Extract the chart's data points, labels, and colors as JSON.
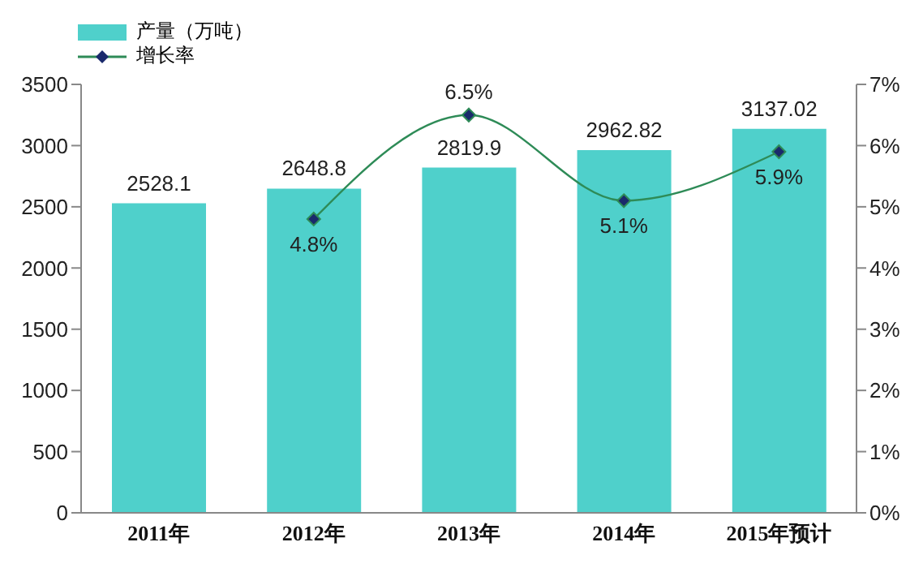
{
  "chart_data": {
    "type": "bar",
    "categories": [
      "2011年",
      "2012年",
      "2013年",
      "2014年",
      "2015年预计"
    ],
    "series": [
      {
        "name": "产量（万吨）",
        "color": "#4fd0cb",
        "values": [
          2528.1,
          2648.8,
          2819.9,
          2962.82,
          3137.02
        ],
        "value_labels": [
          "2528.1",
          "2648.8",
          "2819.9",
          "2962.82",
          "3137.02"
        ]
      },
      {
        "name": "增长率",
        "type": "line",
        "axis": "y2",
        "color": "#2e8b57",
        "values": [
          null,
          4.8,
          6.5,
          5.1,
          5.9
        ],
        "value_labels": [
          null,
          "4.8%",
          "6.5%",
          "5.1%",
          "5.9%"
        ]
      }
    ],
    "ylim": [
      0,
      3500
    ],
    "yticks": [
      0,
      500,
      1000,
      1500,
      2000,
      2500,
      3000,
      3500
    ],
    "y2lim": [
      0,
      7
    ],
    "y2ticks": [
      {
        "value": 0,
        "label": "0%"
      },
      {
        "value": 1,
        "label": "1%"
      },
      {
        "value": 2,
        "label": "2%"
      },
      {
        "value": 3,
        "label": "3%"
      },
      {
        "value": 4,
        "label": "4%"
      },
      {
        "value": 5,
        "label": "5%"
      },
      {
        "value": 6,
        "label": "6%"
      },
      {
        "value": 7,
        "label": "7%"
      }
    ],
    "legend": "top left",
    "marker": "diamond",
    "grid": false
  }
}
